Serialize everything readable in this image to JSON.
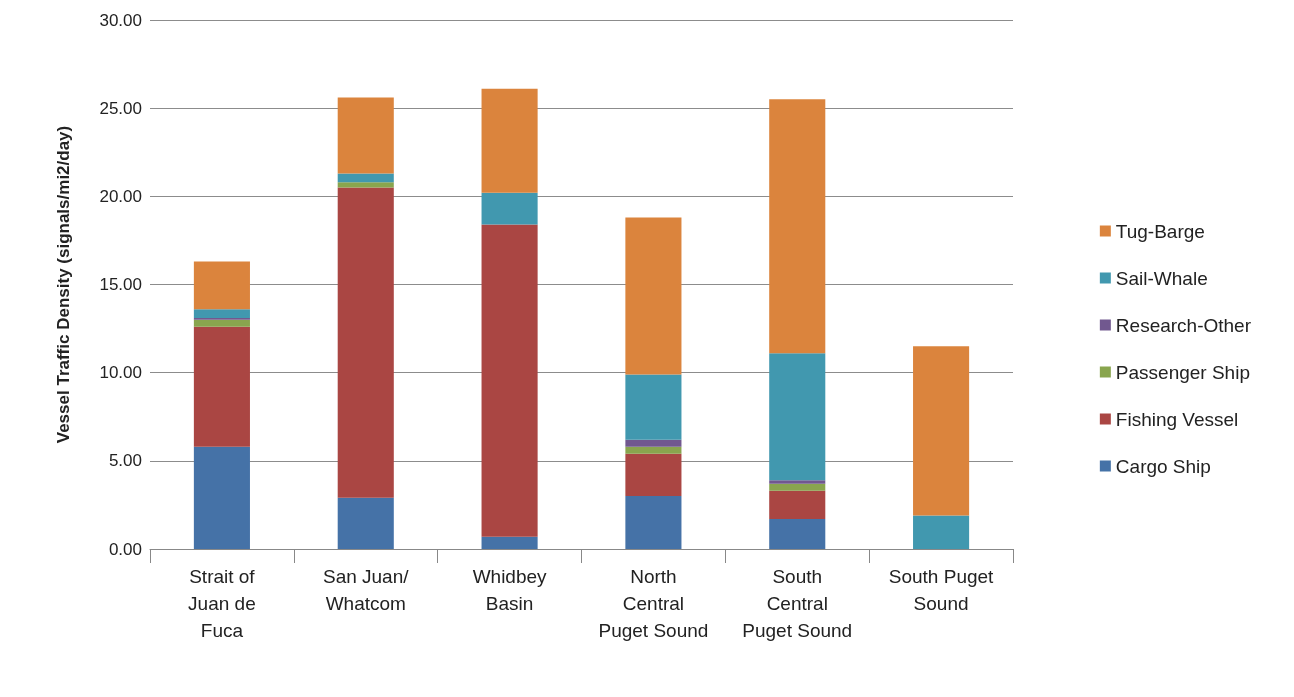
{
  "chart_data": {
    "type": "bar",
    "stacked": true,
    "ylabel": "Vessel Traffic Density (signals/mi2/day)",
    "categories": [
      "Strait of\nJuan de\nFuca",
      "San Juan/\nWhatcom",
      "Whidbey\nBasin",
      "North\nCentral\nPuget Sound",
      "South\nCentral\nPuget Sound",
      "South Puget\nSound"
    ],
    "series": [
      {
        "name": "Cargo Ship",
        "color": "#4572a7",
        "values": [
          5.8,
          2.9,
          0.7,
          3.0,
          1.7,
          0
        ]
      },
      {
        "name": "Fishing Vessel",
        "color": "#aa4643",
        "values": [
          6.8,
          17.6,
          17.7,
          2.4,
          1.6,
          0
        ]
      },
      {
        "name": "Passenger Ship",
        "color": "#89a54e",
        "values": [
          0.4,
          0.3,
          0,
          0.4,
          0.4,
          0
        ]
      },
      {
        "name": "Research-Other",
        "color": "#71588f",
        "values": [
          0.1,
          0,
          0,
          0.4,
          0.2,
          0
        ]
      },
      {
        "name": "Sail-Whale",
        "color": "#4198af",
        "values": [
          0.5,
          0.5,
          1.8,
          3.7,
          7.2,
          1.9
        ]
      },
      {
        "name": "Tug-Barge",
        "color": "#db843d",
        "values": [
          2.7,
          4.3,
          5.9,
          8.9,
          14.4,
          9.6
        ]
      }
    ],
    "ylim": [
      0,
      30
    ],
    "yticks": [
      {
        "value": 0,
        "label": "0.00"
      },
      {
        "value": 5,
        "label": "5.00"
      },
      {
        "value": 10,
        "label": "10.00"
      },
      {
        "value": 15,
        "label": "15.00"
      },
      {
        "value": 20,
        "label": "20.00"
      },
      {
        "value": 25,
        "label": "25.00"
      },
      {
        "value": 30,
        "label": "30.00"
      }
    ],
    "grid": "y",
    "legend": "right"
  }
}
